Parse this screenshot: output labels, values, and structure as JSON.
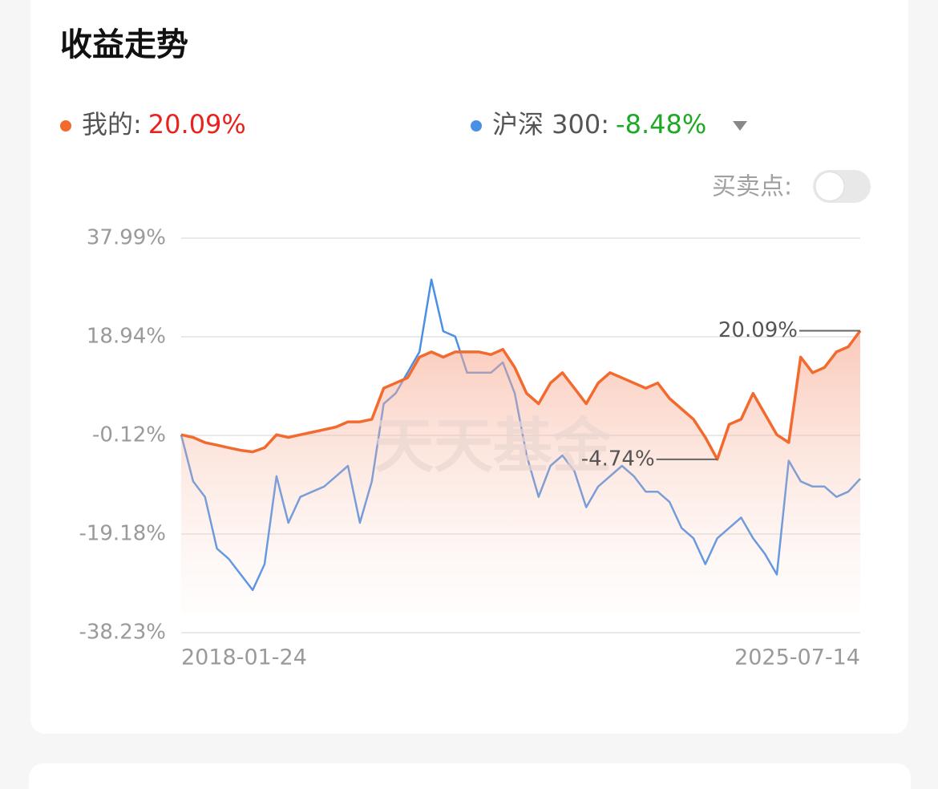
{
  "chart_data": {
    "type": "line",
    "title": "收益走势",
    "toggle_label": "买卖点:",
    "watermark": "天天基金",
    "categories": [
      "2018-01-24",
      null,
      null,
      null,
      null,
      null,
      null,
      null,
      null,
      null,
      null,
      null,
      null,
      null,
      null,
      null,
      null,
      null,
      null,
      null,
      null,
      null,
      null,
      null,
      null,
      null,
      null,
      null,
      null,
      null,
      null,
      null,
      null,
      null,
      null,
      null,
      null,
      null,
      null,
      null,
      null,
      null,
      null,
      null,
      null,
      null,
      null,
      null,
      null,
      null,
      null,
      null,
      null,
      null,
      null,
      null,
      null,
      "2025-07-14"
    ],
    "series": [
      {
        "name": "我的:",
        "color": "#f26a2e",
        "legend_value": "20.09%",
        "legend_value_color": "#e8231d",
        "area": true,
        "values": [
          0,
          -0.5,
          -1.5,
          -2,
          -2.5,
          -3,
          -3.3,
          -2.5,
          0,
          -0.5,
          0,
          0.5,
          1,
          1.5,
          2.5,
          2.5,
          3,
          9,
          10,
          11,
          15,
          16,
          15,
          16,
          16,
          16,
          15.5,
          16.5,
          13,
          8,
          6,
          10,
          12,
          9,
          6,
          10,
          12,
          11,
          10,
          9,
          10,
          7,
          5,
          3,
          -0.5,
          -4.74,
          2,
          3,
          8,
          4,
          0,
          -1.5,
          15,
          12,
          13,
          16,
          17,
          20.09
        ]
      },
      {
        "name": "沪深 300:",
        "color": "#4a8fe6",
        "legend_value": "-8.48%",
        "legend_value_color": "#1fa824",
        "area": false,
        "values": [
          0,
          -9,
          -12,
          -22,
          -24,
          -27,
          -30,
          -25,
          -8,
          -17,
          -12,
          -11,
          -10,
          -8,
          -6,
          -17,
          -9,
          6,
          8,
          12,
          16,
          30,
          20,
          19,
          12,
          12,
          12,
          14,
          8,
          -4,
          -12,
          -6,
          -4,
          -7,
          -14,
          -10,
          -8,
          -6,
          -8,
          -11,
          -11,
          -13,
          -18,
          -20,
          -25,
          -20,
          -18,
          -16,
          -20,
          -23,
          -27,
          -5,
          -9,
          -10,
          -10,
          -12,
          -11,
          -8.48
        ]
      }
    ],
    "annotations": [
      "20.09%",
      "-4.74%"
    ],
    "ylim": [
      -38.23,
      37.99
    ],
    "yticks": [
      {
        "value": 37.99,
        "label": "37.99%"
      },
      {
        "value": 18.94,
        "label": "18.94%"
      },
      {
        "value": -0.12,
        "label": "-0.12%"
      },
      {
        "value": -19.18,
        "label": "-19.18%"
      },
      {
        "value": -38.23,
        "label": "-38.23%"
      }
    ],
    "grid": true
  }
}
